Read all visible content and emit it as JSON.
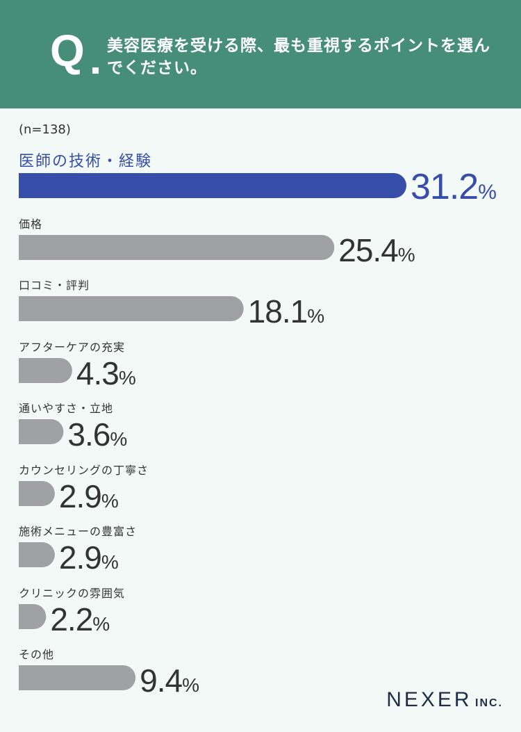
{
  "header": {
    "q_letter": "Q",
    "question": "美容医療を受ける際、最も重視するポイントを選んでください。"
  },
  "sample_size": "(n=138)",
  "brand": {
    "name": "NEXER",
    "suffix": "INC."
  },
  "colors": {
    "header_bg": "#478e79",
    "page_bg": "#f2f9f6",
    "highlight_bar": "#364daa",
    "bar": "#a0a1a5",
    "value_text": "#333333"
  },
  "chart_data": {
    "type": "bar",
    "orientation": "horizontal",
    "unit": "%",
    "categories": [
      "医師の技術・経験",
      "価格",
      "口コミ・評判",
      "アフターケアの充実",
      "通いやすさ・立地",
      "カウンセリングの丁寧さ",
      "施術メニューの豊富さ",
      "クリニックの雰囲気",
      "その他"
    ],
    "values": [
      31.2,
      25.4,
      18.1,
      4.3,
      3.6,
      2.9,
      2.9,
      2.2,
      9.4
    ],
    "value_labels": [
      "31.2",
      "25.4",
      "18.1",
      "4.3",
      "3.6",
      "2.9",
      "2.9",
      "2.2",
      "9.4"
    ],
    "highlight_index": 0,
    "grid": false,
    "legend": "none"
  }
}
